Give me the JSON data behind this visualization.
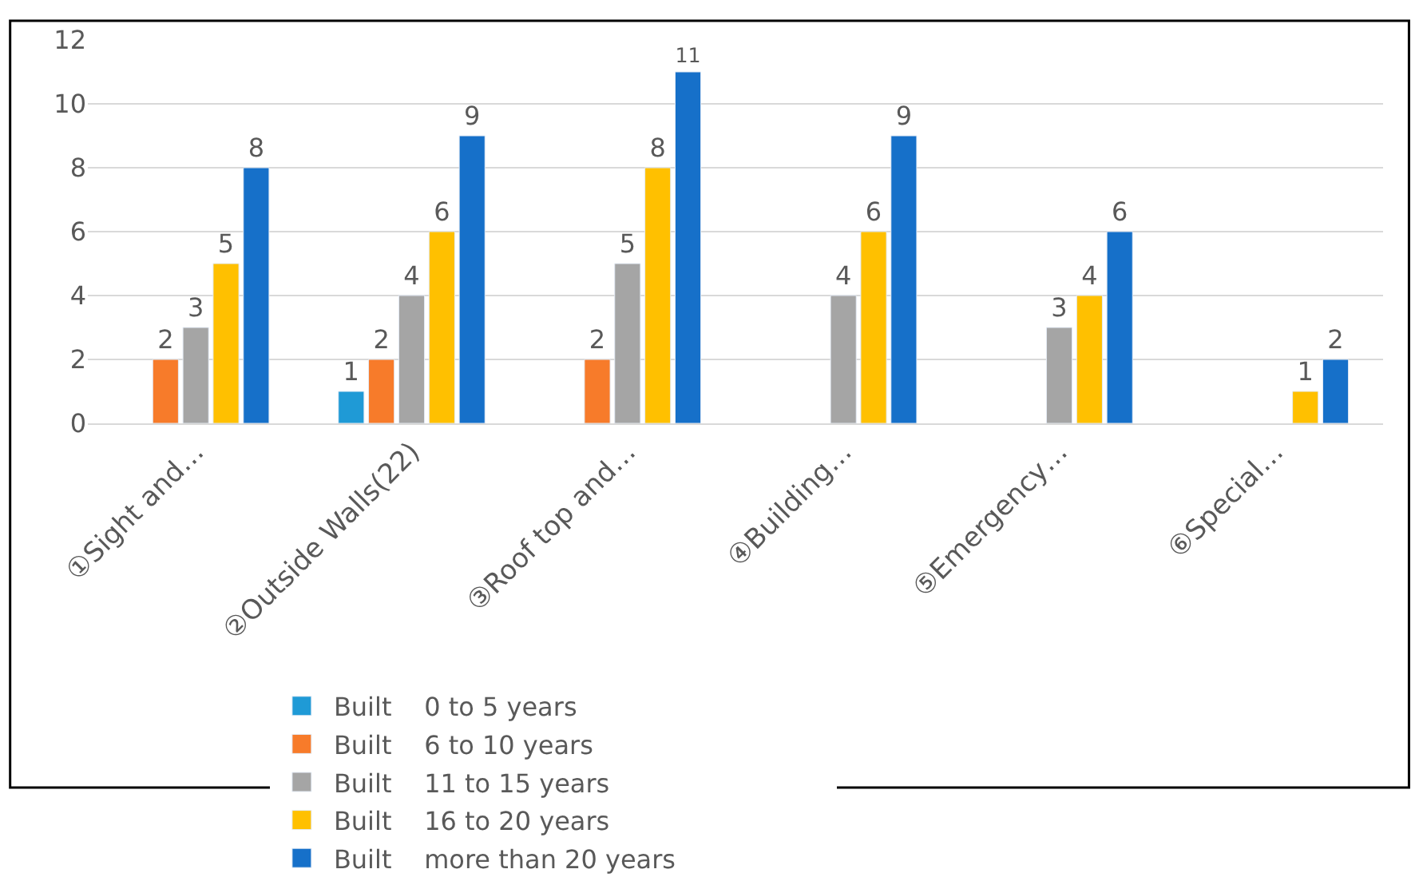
{
  "chart_data": {
    "type": "bar",
    "categories": [
      "①Sight and…",
      "②Outside Walls(22)",
      "③Roof top and…",
      "④Building…",
      "⑤Emergency…",
      "⑥Special…"
    ],
    "series": [
      {
        "name": "Built    0 to 5 years",
        "color": "#1f9ad6",
        "values": [
          null,
          1,
          null,
          null,
          null,
          null
        ]
      },
      {
        "name": "Built    6 to 10 years",
        "color": "#f77b2a",
        "values": [
          2,
          2,
          2,
          null,
          null,
          null
        ]
      },
      {
        "name": "Built    11 to 15 years",
        "color": "#a5a5a5",
        "values": [
          3,
          4,
          5,
          4,
          3,
          null
        ]
      },
      {
        "name": "Built    16 to 20 years",
        "color": "#ffc000",
        "values": [
          5,
          6,
          8,
          6,
          4,
          1
        ]
      },
      {
        "name": "Built    more than 20 years",
        "color": "#1670c9",
        "values": [
          8,
          9,
          11,
          9,
          6,
          2
        ]
      }
    ],
    "ylim": [
      0,
      12
    ],
    "yticks": [
      0,
      2,
      4,
      6,
      8,
      10,
      12
    ],
    "grid": "y",
    "legend": "bottom",
    "data_labels": true
  }
}
